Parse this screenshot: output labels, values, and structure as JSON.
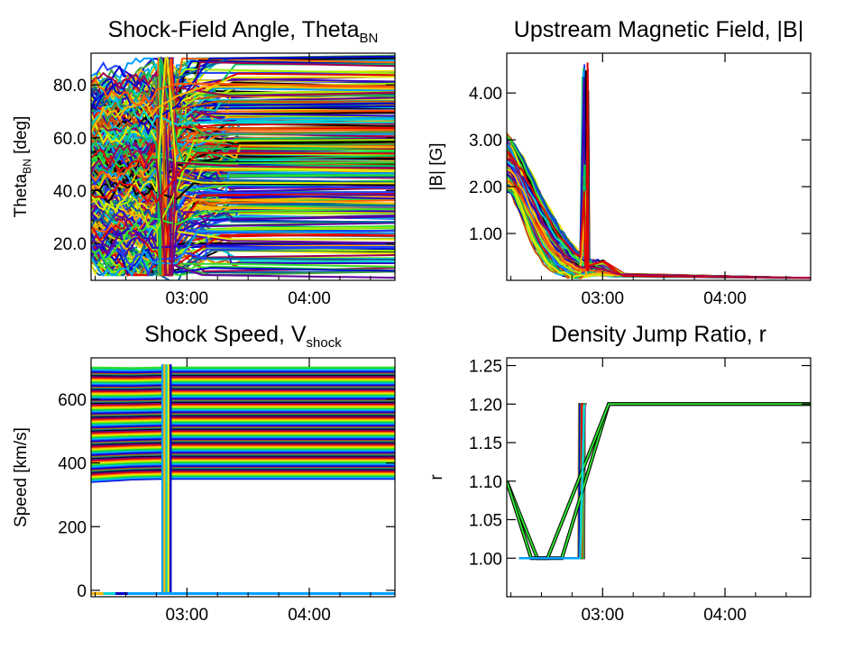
{
  "chart_data": [
    {
      "type": "line",
      "title": "Shock-Field Angle, Theta",
      "title_sub": "BN",
      "ylabel": "Theta",
      "ylabel_sub": "BN",
      "ylabel_suffix": " [deg]",
      "xlim": [
        "02:13",
        "04:42"
      ],
      "ylim": [
        6,
        92
      ],
      "xticks": [
        {
          "t": "03:00",
          "label": "03:00"
        },
        {
          "t": "04:00",
          "label": "04:00"
        }
      ],
      "yticks": [
        {
          "v": 20,
          "label": "20.0"
        },
        {
          "v": 40,
          "label": "40.0"
        },
        {
          "v": 60,
          "label": "60.0"
        },
        {
          "v": 80,
          "label": "80.0"
        }
      ],
      "series_count": 300,
      "value_range": [
        8,
        90
      ],
      "spike_window": [
        "02:46",
        "02:53"
      ],
      "series_sample": [
        {
          "x": [
            "02:13",
            "02:40",
            "02:56",
            "03:20",
            "04:42"
          ],
          "y": [
            30,
            38,
            52,
            60,
            62
          ]
        },
        {
          "x": [
            "02:13",
            "02:40",
            "02:56",
            "03:20",
            "04:42"
          ],
          "y": [
            15,
            25,
            35,
            40,
            42
          ]
        },
        {
          "x": [
            "02:13",
            "02:40",
            "02:56",
            "03:20",
            "04:42"
          ],
          "y": [
            55,
            65,
            78,
            82,
            84
          ]
        }
      ]
    },
    {
      "type": "line",
      "title": "Upstream Magnetic Field, |B|",
      "ylabel": "|B| [G]",
      "xlim": [
        "02:13",
        "04:42"
      ],
      "ylim": [
        0,
        4.85
      ],
      "xticks": [
        {
          "t": "03:00",
          "label": "03:00"
        },
        {
          "t": "04:00",
          "label": "04:00"
        }
      ],
      "yticks": [
        {
          "v": 1,
          "label": "1.00"
        },
        {
          "v": 2,
          "label": "2.00"
        },
        {
          "v": 3,
          "label": "3.00"
        },
        {
          "v": 4,
          "label": "4.00"
        }
      ],
      "series_count": 120,
      "start_range": [
        1.9,
        3.1
      ],
      "end_value": 0.05,
      "spike_window": [
        "02:50",
        "02:53"
      ],
      "spike_max": 4.65
    },
    {
      "type": "line",
      "title": "Shock Speed, V",
      "title_sub": "shock",
      "ylabel": "Speed [km/s]",
      "xlim": [
        "02:13",
        "04:42"
      ],
      "ylim": [
        -20,
        730
      ],
      "xticks": [
        {
          "t": "03:00",
          "label": "03:00"
        },
        {
          "t": "04:00",
          "label": "04:00"
        }
      ],
      "yticks": [
        {
          "v": 0,
          "label": "0"
        },
        {
          "v": 200,
          "label": "200"
        },
        {
          "v": 400,
          "label": "400"
        },
        {
          "v": 600,
          "label": "600"
        }
      ],
      "series_count": 150,
      "value_range": [
        350,
        700
      ],
      "drop_value": -10,
      "drop_window": [
        "02:48",
        "02:52"
      ]
    },
    {
      "type": "line",
      "title": "Density Jump Ratio, r",
      "ylabel": "r",
      "xlim": [
        "02:13",
        "04:42"
      ],
      "ylim": [
        0.95,
        1.26
      ],
      "xticks": [
        {
          "t": "03:00",
          "label": "03:00"
        },
        {
          "t": "04:00",
          "label": "04:00"
        }
      ],
      "yticks": [
        {
          "v": 1.0,
          "label": "1.00"
        },
        {
          "v": 1.05,
          "label": "1.05"
        },
        {
          "v": 1.1,
          "label": "1.10"
        },
        {
          "v": 1.15,
          "label": "1.15"
        },
        {
          "v": 1.2,
          "label": "1.20"
        },
        {
          "v": 1.25,
          "label": "1.25"
        }
      ],
      "series": [
        {
          "x": [
            "02:13",
            "02:28",
            "02:40",
            "03:03",
            "04:42"
          ],
          "y": [
            1.1,
            1.0,
            1.0,
            1.2,
            1.2
          ]
        },
        {
          "x": [
            "02:13",
            "02:25",
            "02:33",
            "03:03",
            "04:42"
          ],
          "y": [
            1.1,
            1.0,
            1.0,
            1.2,
            1.2
          ]
        },
        {
          "x": [
            "02:19",
            "02:49"
          ],
          "y": [
            1.0,
            1.0
          ]
        },
        {
          "x": [
            "02:49",
            "02:51"
          ],
          "y": [
            1.0,
            1.2
          ]
        }
      ],
      "plateau_low": 1.0,
      "plateau_high": 1.2,
      "step_window": [
        "02:48",
        "02:51"
      ]
    }
  ]
}
